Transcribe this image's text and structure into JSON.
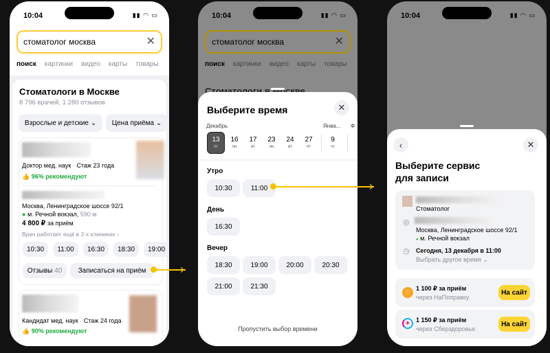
{
  "status_time": "10:04",
  "search": {
    "query": "стоматолог москва"
  },
  "tabs": [
    "поиск",
    "картинки",
    "видео",
    "карты",
    "товары"
  ],
  "results": {
    "title": "Стоматологи в Москве",
    "subtitle": "8 796 врачей, 1 280 отзывов",
    "filters": [
      "Взрослые и детские",
      "Цена приёма"
    ]
  },
  "doctor1": {
    "degree": "Доктор мед. наук",
    "experience": "Стаж 23 года",
    "recommend": "96% рекомендуют",
    "address": "Москва, Ленинградское шоссе 92/1",
    "metro": "м. Речной вокзал,",
    "distance": "590 м",
    "price": "4 800 ₽",
    "price_suffix": "за приём",
    "more_clinics": "Врач работает ещё в 2-х клиниках",
    "slots": [
      "10:30",
      "11:00",
      "16:30",
      "18:30",
      "19:00"
    ],
    "reviews_label": "Отзывы",
    "reviews_count": "40",
    "book_label": "Записаться на приём"
  },
  "doctor2": {
    "degree": "Кандидат мед. наук",
    "experience": "Стаж 24 года",
    "recommend": "90% рекомендуют"
  },
  "time_sheet": {
    "title": "Выберите время",
    "month1": "Декабрь",
    "month2": "Янва...",
    "month3": "Ф",
    "days": [
      {
        "d": "13",
        "w": "пт"
      },
      {
        "d": "16",
        "w": "пн"
      },
      {
        "d": "17",
        "w": "вт"
      },
      {
        "d": "23",
        "w": "пн"
      },
      {
        "d": "24",
        "w": "вт"
      },
      {
        "d": "27",
        "w": "пт"
      },
      {
        "d": "9",
        "w": "чт"
      }
    ],
    "selected_day": "13",
    "morning": "Утро",
    "morning_slots": [
      "10:30",
      "11:00"
    ],
    "day": "День",
    "day_slots": [
      "16:30"
    ],
    "evening": "Вечер",
    "evening_slots": [
      "18:30",
      "19:00",
      "20:00",
      "20:30",
      "21:00",
      "21:30"
    ],
    "skip": "Пропустить выбор времени"
  },
  "service_sheet": {
    "title_line1": "Выберите сервис",
    "title_line2": "для записи",
    "specialty": "Стоматолог",
    "address": "Москва, Ленинградское шоссе 92/1",
    "metro": "м. Речной вокзал",
    "datetime": "Сегодня, 13 декабря в 11:00",
    "change_time": "Выбрать другое время",
    "services": [
      {
        "price": "1 100 ₽ за приём",
        "via": "через НаПоправку",
        "button": "На сайт",
        "color": "#f5a623"
      },
      {
        "price": "1 150 ₽ за приём",
        "via": "через Сберздоровье",
        "button": "На сайт",
        "color": "#e6007e"
      }
    ]
  },
  "colors": {
    "accent": "#fcd535",
    "green": "#1eab3c",
    "background": "#121212"
  }
}
